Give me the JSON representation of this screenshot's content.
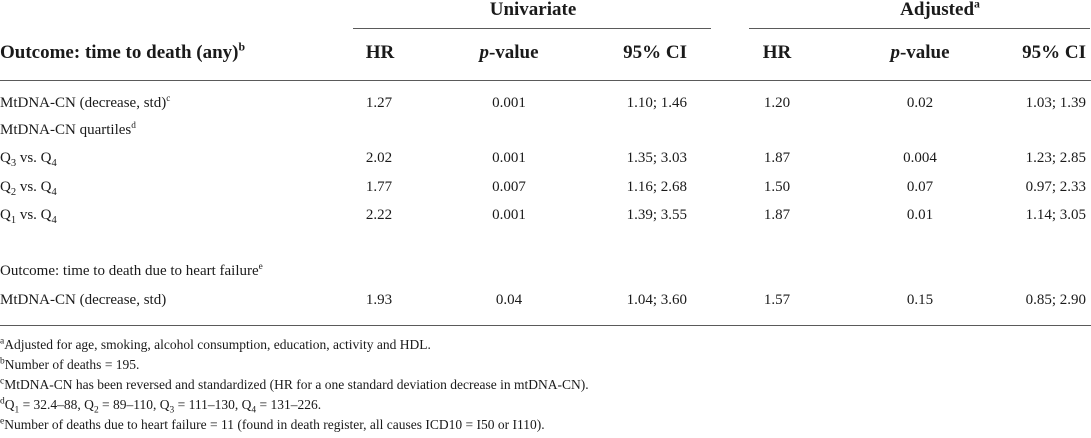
{
  "group_headers": {
    "univariate": "Univariate",
    "adjusted": "Adjusted",
    "adjusted_sup": "a"
  },
  "columns": {
    "outcome": "Outcome: time to death (any)",
    "outcome_sup": "b",
    "hr1": "HR",
    "p1_italic": "p",
    "p1_rest": "-value",
    "ci1": "95% CI",
    "hr2": "HR",
    "p2_italic": "p",
    "p2_rest": "-value",
    "ci2": "95% CI"
  },
  "rows": [
    {
      "label": "MtDNA-CN (decrease, std)",
      "sup": "c",
      "hr1": "1.27",
      "p1": "0.001",
      "ci1": "1.10; 1.46",
      "hr2": "1.20",
      "p2": "0.02",
      "ci2": "1.03; 1.39"
    },
    {
      "label": "MtDNA-CN quartiles",
      "sup": "d"
    },
    {
      "q": "3",
      "vs": " vs. Q",
      "q2": "4",
      "hr1": "2.02",
      "p1": "0.001",
      "ci1": "1.35; 3.03",
      "hr2": "1.87",
      "p2": "0.004",
      "ci2": "1.23; 2.85"
    },
    {
      "q": "2",
      "vs": " vs. Q",
      "q2": "4",
      "hr1": "1.77",
      "p1": "0.007",
      "ci1": "1.16; 2.68",
      "hr2": "1.50",
      "p2": "0.07",
      "ci2": "0.97; 2.33"
    },
    {
      "q": "1",
      "vs": " vs. Q",
      "q2": "4",
      "hr1": "2.22",
      "p1": "0.001",
      "ci1": "1.39; 3.55",
      "hr2": "1.87",
      "p2": "0.01",
      "ci2": "1.14; 3.05"
    },
    {
      "label": "Outcome: time to death due to heart failure",
      "sup": "e"
    },
    {
      "label": "MtDNA-CN (decrease, std)",
      "hr1": "1.93",
      "p1": "0.04",
      "ci1": "1.04; 3.60",
      "hr2": "1.57",
      "p2": "0.15",
      "ci2": "0.85; 2.90"
    }
  ],
  "footnotes": [
    {
      "mark": "a",
      "text": "Adjusted for age, smoking, alcohol consumption, education, activity and HDL."
    },
    {
      "mark": "b",
      "text": "Number of deaths = 195."
    },
    {
      "mark": "c",
      "text": "MtDNA-CN has been reversed and standardized (HR for a one standard deviation decrease in mtDNA-CN)."
    },
    {
      "mark": "d",
      "q1": "1",
      "t1": " = 32.4–88, Q",
      "q2": "2",
      "t2": " = 89–110, Q",
      "q3": "3",
      "t3": " = 111–130, Q",
      "q4": "4",
      "t4": " = 131–226."
    },
    {
      "mark": "e",
      "text": "Number of deaths due to heart failure = 11 (found in death register, all causes ICD10 = I50 or I110)."
    }
  ]
}
